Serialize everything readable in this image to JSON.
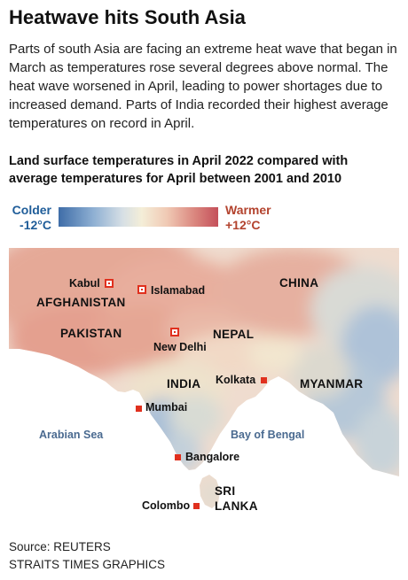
{
  "headline": "Heatwave hits South Asia",
  "intro": "Parts of south Asia are facing an extreme heat wave that began in March as temperatures rose several degrees above normal. The heat wave worsened in April, leading to power shortages due to increased demand. Parts of India recorded their highest average temperatures on record in April.",
  "chart_title": "Land surface temperatures in April 2022 compared with average temperatures for April between 2001 and 2010",
  "legend": {
    "cold_label": "Colder",
    "cold_value": "-12°C",
    "warm_label": "Warmer",
    "warm_value": "+12°C",
    "cold_color": "#3f6da8",
    "neutral_color": "#f4eed8",
    "warm_color": "#c4505a"
  },
  "map": {
    "countries": {
      "afghanistan": "AFGHANISTAN",
      "pakistan": "PAKISTAN",
      "china": "CHINA",
      "nepal": "NEPAL",
      "india": "INDIA",
      "myanmar": "MYANMAR",
      "sri_lanka_1": "SRI",
      "sri_lanka_2": "LANKA"
    },
    "seas": {
      "arabian_sea": "Arabian Sea",
      "bay_of_bengal": "Bay of Bengal"
    },
    "cities": {
      "kabul": "Kabul",
      "islamabad": "Islamabad",
      "new_delhi": "New Delhi",
      "kolkata": "Kolkata",
      "mumbai": "Mumbai",
      "bangalore": "Bangalore",
      "colombo": "Colombo"
    },
    "marker_color": "#e0301e",
    "sea_color": "#ffffff"
  },
  "source": "Source: REUTERS",
  "credit": "STRAITS TIMES GRAPHICS"
}
